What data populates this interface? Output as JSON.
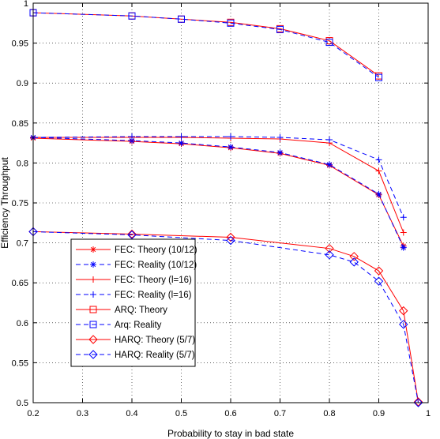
{
  "chart_data": {
    "type": "line",
    "xlabel": "Probability to stay in bad state",
    "ylabel": "Efficiency Throughput",
    "xlim": [
      0.2,
      1
    ],
    "ylim": [
      0.5,
      1
    ],
    "xticks": [
      "0.2",
      "0.3",
      "0.4",
      "0.5",
      "0.6",
      "0.7",
      "0.8",
      "0.9",
      "1"
    ],
    "yticks": [
      "0.5",
      "0.55",
      "0.6",
      "0.65",
      "0.7",
      "0.75",
      "0.8",
      "0.85",
      "0.9",
      "0.95",
      "1"
    ],
    "grid": true,
    "legend_position": "bottom-left",
    "series": [
      {
        "name": "FEC: Theory (10/12)",
        "color": "#ff0000",
        "dash": "solid",
        "marker": "asterisk",
        "x": [
          0.2,
          0.4,
          0.5,
          0.6,
          0.7,
          0.8,
          0.9,
          0.95
        ],
        "y": [
          0.831,
          0.827,
          0.824,
          0.819,
          0.812,
          0.797,
          0.76,
          0.696
        ]
      },
      {
        "name": "FEC: Reality (10/12)",
        "color": "#0000ff",
        "dash": "dashed",
        "marker": "asterisk",
        "x": [
          0.2,
          0.4,
          0.5,
          0.6,
          0.7,
          0.8,
          0.9,
          0.95
        ],
        "y": [
          0.832,
          0.828,
          0.825,
          0.82,
          0.813,
          0.798,
          0.761,
          0.694
        ]
      },
      {
        "name": "FEC: Theory (l=16)",
        "color": "#ff0000",
        "dash": "solid",
        "marker": "plus",
        "x": [
          0.2,
          0.4,
          0.5,
          0.6,
          0.7,
          0.8,
          0.9,
          0.95
        ],
        "y": [
          0.832,
          0.832,
          0.832,
          0.831,
          0.83,
          0.825,
          0.79,
          0.713
        ]
      },
      {
        "name": "FEC: Reality (l=16)",
        "color": "#0000ff",
        "dash": "dashed",
        "marker": "plus",
        "x": [
          0.2,
          0.4,
          0.5,
          0.6,
          0.7,
          0.8,
          0.9,
          0.95
        ],
        "y": [
          0.832,
          0.833,
          0.833,
          0.833,
          0.832,
          0.829,
          0.804,
          0.732
        ]
      },
      {
        "name": "ARQ: Theory",
        "color": "#ff0000",
        "dash": "solid",
        "marker": "square",
        "x": [
          0.2,
          0.4,
          0.5,
          0.6,
          0.7,
          0.8,
          0.9
        ],
        "y": [
          0.988,
          0.984,
          0.98,
          0.976,
          0.968,
          0.953,
          0.909
        ]
      },
      {
        "name": "Arq: Reality",
        "color": "#0000ff",
        "dash": "dashed",
        "marker": "square",
        "x": [
          0.2,
          0.4,
          0.5,
          0.6,
          0.7,
          0.8,
          0.9
        ],
        "y": [
          0.988,
          0.984,
          0.98,
          0.975,
          0.967,
          0.951,
          0.907
        ]
      },
      {
        "name": "HARQ: Theory (5/7)",
        "color": "#ff0000",
        "dash": "solid",
        "marker": "diamond",
        "x": [
          0.2,
          0.4,
          0.6,
          0.8,
          0.85,
          0.9,
          0.95,
          0.98
        ],
        "y": [
          0.714,
          0.711,
          0.707,
          0.693,
          0.683,
          0.665,
          0.615,
          0.501
        ]
      },
      {
        "name": "HARQ: Reality (5/7)",
        "color": "#0000ff",
        "dash": "dashed",
        "marker": "diamond",
        "x": [
          0.2,
          0.4,
          0.6,
          0.8,
          0.85,
          0.9,
          0.95,
          0.98
        ],
        "y": [
          0.714,
          0.71,
          0.703,
          0.685,
          0.676,
          0.652,
          0.598,
          0.5
        ]
      }
    ]
  }
}
